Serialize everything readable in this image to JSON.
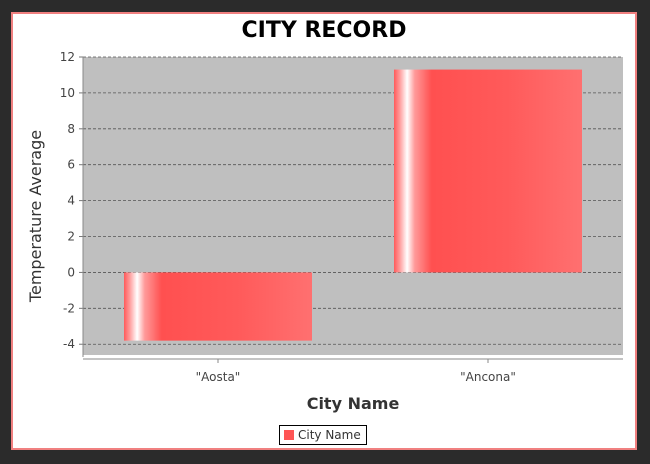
{
  "chart_data": {
    "type": "bar",
    "title": "CITY RECORD",
    "xlabel": "City Name",
    "ylabel": "Temperature Average",
    "categories": [
      "\"Aosta\"",
      "\"Ancona\""
    ],
    "series": [
      {
        "name": "City Name",
        "values": [
          -3.8,
          11.3
        ]
      }
    ],
    "ylim": [
      -4.6,
      12
    ],
    "yticks": [
      "12",
      "10",
      "8",
      "6",
      "4",
      "2",
      "0",
      "-2",
      "-4"
    ],
    "grid": true,
    "legend_position": "bottom",
    "colors": {
      "bar": "#ff5555",
      "plot_background": "#bfbfbf",
      "frame_border": "#f08080",
      "page_background": "#2b2b2b"
    }
  }
}
